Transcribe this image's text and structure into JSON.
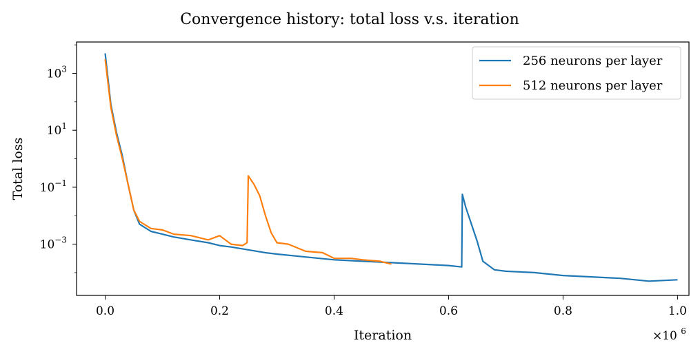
{
  "chart_data": {
    "type": "line",
    "title": "Convergence history: total loss v.s. iteration",
    "xlabel": "Iteration",
    "ylabel": "Total loss",
    "x_multiplier_label": "×10",
    "x_multiplier_exponent": "6",
    "xlim": [
      -0.05,
      1.02
    ],
    "ylim_log10": [
      -4.8,
      4.1
    ],
    "yscale": "log",
    "grid": false,
    "legend_position": "top-right",
    "x_ticks": [
      {
        "value": 0.0,
        "label": "0.0"
      },
      {
        "value": 0.2,
        "label": "0.2"
      },
      {
        "value": 0.4,
        "label": "0.4"
      },
      {
        "value": 0.6,
        "label": "0.6"
      },
      {
        "value": 0.8,
        "label": "0.8"
      },
      {
        "value": 1.0,
        "label": "1.0"
      }
    ],
    "y_ticks": [
      {
        "exp": 3,
        "base": "10",
        "power": "3"
      },
      {
        "exp": 1,
        "base": "10",
        "power": "1"
      },
      {
        "exp": -1,
        "base": "10",
        "power": "−1"
      },
      {
        "exp": -3,
        "base": "10",
        "power": "−3"
      }
    ],
    "series": [
      {
        "name": "256 neurons per layer",
        "color": "#1f77b4",
        "x": [
          0.0,
          0.01,
          0.02,
          0.03,
          0.04,
          0.05,
          0.06,
          0.08,
          0.1,
          0.12,
          0.15,
          0.18,
          0.2,
          0.22,
          0.25,
          0.28,
          0.3,
          0.35,
          0.4,
          0.45,
          0.5,
          0.55,
          0.6,
          0.623,
          0.624,
          0.63,
          0.64,
          0.65,
          0.66,
          0.68,
          0.7,
          0.75,
          0.8,
          0.85,
          0.9,
          0.95,
          1.0
        ],
        "log10y": [
          3.7,
          1.9,
          0.9,
          0.1,
          -0.9,
          -1.8,
          -2.3,
          -2.55,
          -2.65,
          -2.75,
          -2.85,
          -2.95,
          -3.05,
          -3.1,
          -3.2,
          -3.3,
          -3.35,
          -3.45,
          -3.55,
          -3.6,
          -3.65,
          -3.7,
          -3.75,
          -3.8,
          -1.25,
          -1.7,
          -2.3,
          -2.9,
          -3.6,
          -3.9,
          -3.95,
          -4.0,
          -4.1,
          -4.15,
          -4.2,
          -4.3,
          -4.25
        ]
      },
      {
        "name": "512 neurons per layer",
        "color": "#ff7f0e",
        "x": [
          0.0,
          0.01,
          0.02,
          0.03,
          0.04,
          0.05,
          0.06,
          0.08,
          0.1,
          0.12,
          0.15,
          0.18,
          0.2,
          0.22,
          0.24,
          0.248,
          0.25,
          0.26,
          0.27,
          0.28,
          0.29,
          0.3,
          0.32,
          0.35,
          0.38,
          0.4,
          0.43,
          0.45,
          0.48,
          0.5
        ],
        "log10y": [
          3.5,
          1.8,
          0.8,
          0.0,
          -0.9,
          -1.8,
          -2.2,
          -2.45,
          -2.5,
          -2.65,
          -2.7,
          -2.85,
          -2.7,
          -3.0,
          -3.05,
          -2.95,
          -0.6,
          -0.9,
          -1.3,
          -2.0,
          -2.6,
          -2.95,
          -3.0,
          -3.25,
          -3.3,
          -3.5,
          -3.5,
          -3.55,
          -3.6,
          -3.7
        ]
      }
    ]
  }
}
